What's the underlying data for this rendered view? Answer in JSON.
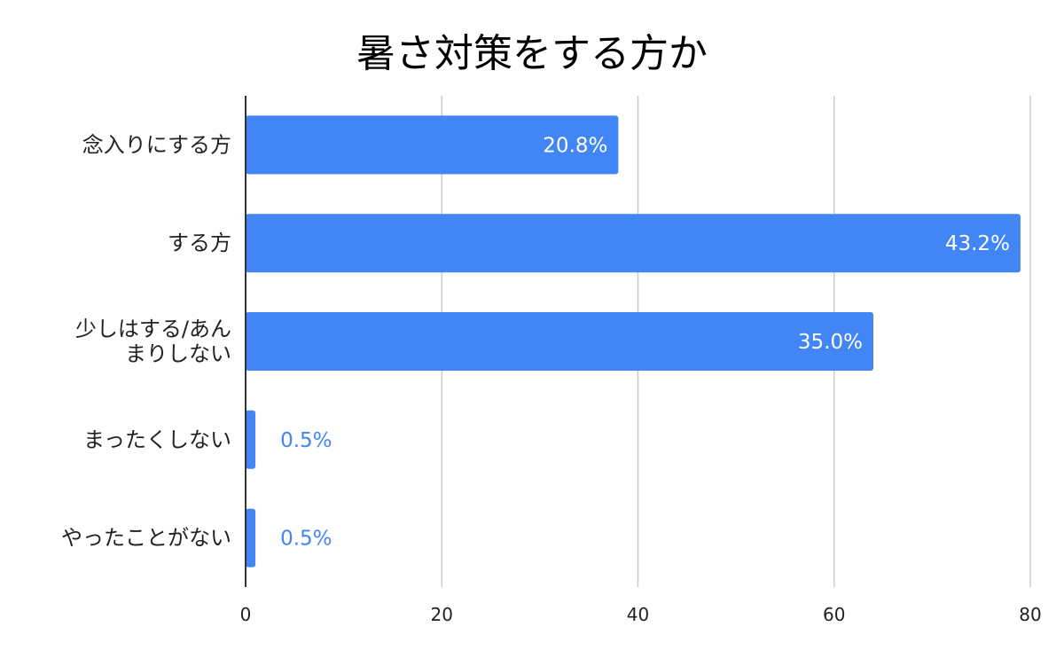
{
  "chart_data": {
    "type": "bar",
    "orientation": "horizontal",
    "title": "暑さ対策をする方か",
    "categories": [
      "念入りにする方",
      "する方",
      "少しはする/あんまりしない",
      "まったくしない",
      "やったことがない"
    ],
    "category_lines": [
      [
        "念入りにする方"
      ],
      [
        "する方"
      ],
      [
        "少しはする/あん",
        "まりしない"
      ],
      [
        "まったくしない"
      ],
      [
        "やったことがない"
      ]
    ],
    "values": [
      38,
      79,
      64,
      1,
      1
    ],
    "data_labels": [
      "20.8%",
      "43.2%",
      "35.0%",
      "0.5%",
      "0.5%"
    ],
    "xlim": [
      0,
      80
    ],
    "xticks": [
      "0",
      "20",
      "40",
      "60",
      "80"
    ],
    "xticks_values": [
      0,
      20,
      40,
      60,
      80
    ],
    "xlabel": "",
    "ylabel": "",
    "grid": true,
    "colors": {
      "bar": "#4285f4",
      "grid": "#cccccc",
      "axis": "#333333",
      "label_inside": "#ffffff",
      "label_outside": "#4285f4"
    }
  }
}
